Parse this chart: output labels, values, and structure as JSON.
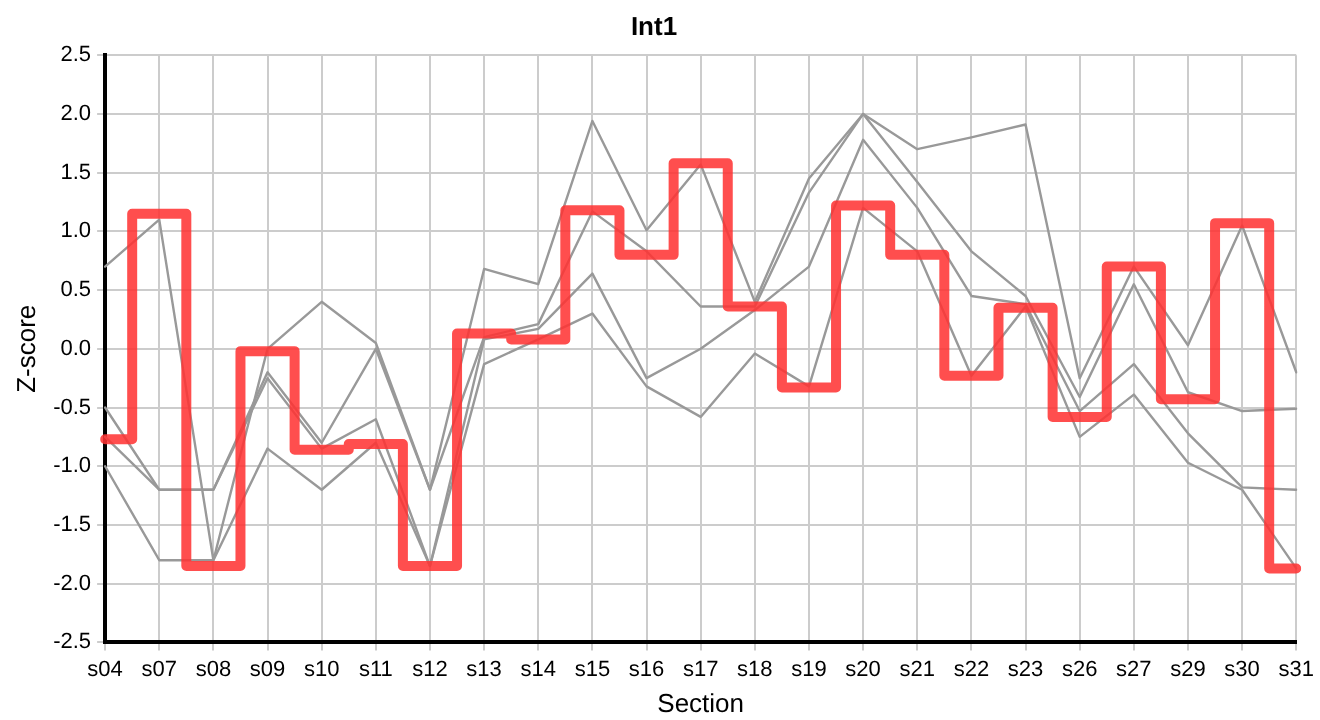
{
  "chart_data": {
    "type": "line",
    "title": "Int1",
    "xlabel": "Section",
    "ylabel": "Z-score",
    "categories": [
      "s04",
      "s07",
      "s08",
      "s09",
      "s10",
      "s11",
      "s12",
      "s13",
      "s14",
      "s15",
      "s16",
      "s17",
      "s18",
      "s19",
      "s20",
      "s21",
      "s22",
      "s23",
      "s26",
      "s27",
      "s29",
      "s30",
      "s31"
    ],
    "ylim": [
      -2.5,
      2.5
    ],
    "yticks": [
      {
        "value": -2.5,
        "label": "-2.5"
      },
      {
        "value": -2,
        "label": "-2.0"
      },
      {
        "value": -1.5,
        "label": "-1.5"
      },
      {
        "value": -1,
        "label": "-1.0"
      },
      {
        "value": -0.5,
        "label": "-0.5"
      },
      {
        "value": 0,
        "label": "0.0"
      },
      {
        "value": 0.5,
        "label": "0.5"
      },
      {
        "value": 1,
        "label": "1.0"
      },
      {
        "value": 1.5,
        "label": "1.5"
      },
      {
        "value": 2,
        "label": "2.0"
      },
      {
        "value": 2.5,
        "label": "2.5"
      }
    ],
    "grid": true,
    "legend": false,
    "marker": "none",
    "series": [
      {
        "type": "line",
        "color": "#999999",
        "values": [
          0.7,
          1.1,
          -1.8,
          0.0,
          0.4,
          0.05,
          -1.2,
          0.68,
          0.55,
          1.94,
          1.01,
          1.57,
          0.4,
          1.45,
          2.0,
          1.7,
          1.8,
          1.91,
          -0.25,
          0.7,
          0.03,
          1.05,
          -0.2
        ]
      },
      {
        "type": "line",
        "color": "#999999",
        "values": [
          -0.5,
          -1.2,
          -1.2,
          -0.2,
          -0.8,
          0.0,
          -1.2,
          0.1,
          0.21,
          1.17,
          0.83,
          0.36,
          0.36,
          1.33,
          2.0,
          1.42,
          0.83,
          0.45,
          -0.41,
          0.55,
          -0.37,
          -0.53,
          -0.51
        ]
      },
      {
        "type": "line",
        "color": "#999999",
        "values": [
          -0.75,
          -1.2,
          -1.2,
          -0.25,
          -0.85,
          -0.6,
          -1.85,
          0.08,
          0.17,
          0.64,
          -0.25,
          0.0,
          0.33,
          0.7,
          1.78,
          1.2,
          0.45,
          0.38,
          -0.53,
          -0.13,
          -0.72,
          -1.18,
          -1.2
        ]
      },
      {
        "type": "line",
        "color": "#999999",
        "values": [
          -1.0,
          -1.8,
          -1.8,
          -0.85,
          -1.2,
          -0.8,
          -1.85,
          -0.13,
          0.08,
          0.3,
          -0.32,
          -0.58,
          -0.04,
          -0.32,
          1.2,
          0.83,
          -0.23,
          0.36,
          -0.75,
          -0.39,
          -0.97,
          -1.2,
          -1.87
        ]
      },
      {
        "type": "step",
        "color": "#ff3333",
        "values": [
          -0.77,
          1.15,
          -1.85,
          -0.02,
          -0.86,
          -0.81,
          -1.85,
          0.13,
          0.08,
          1.18,
          0.8,
          1.58,
          0.36,
          -0.33,
          1.22,
          0.8,
          -0.23,
          0.35,
          -0.58,
          0.7,
          -0.43,
          1.07,
          -1.87
        ]
      }
    ]
  }
}
